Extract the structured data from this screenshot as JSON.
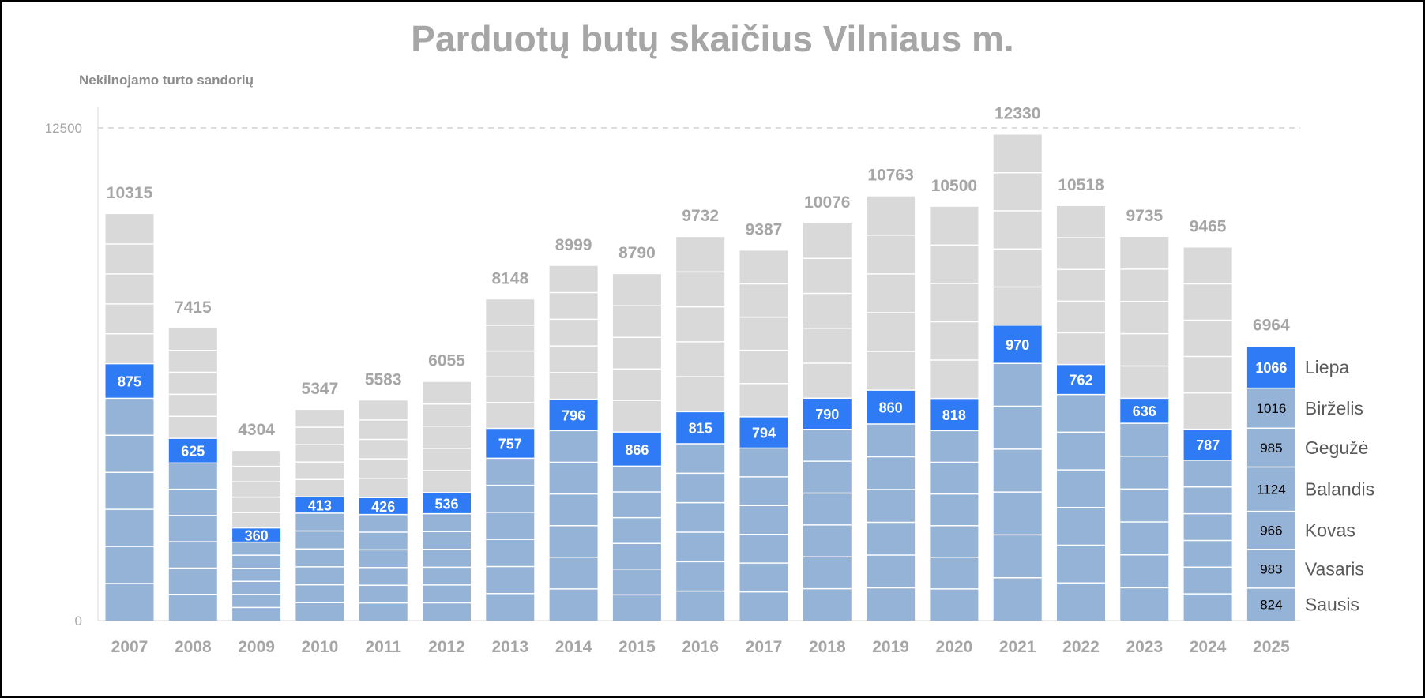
{
  "chart_data": {
    "type": "bar",
    "stacked": true,
    "title": "Parduotų butų skaičius Vilniaus m.",
    "ylabel": "Nekilnojamo turto sandorių",
    "xlabel": "",
    "ylim": [
      0,
      12500
    ],
    "yticks": [
      "0",
      "12500"
    ],
    "reference_line": 12500,
    "categories": [
      "2007",
      "2008",
      "2009",
      "2010",
      "2011",
      "2012",
      "2013",
      "2014",
      "2015",
      "2016",
      "2017",
      "2018",
      "2019",
      "2020",
      "2021",
      "2022",
      "2023",
      "2024",
      "2025"
    ],
    "totals": [
      10315,
      7415,
      4304,
      5347,
      5583,
      6055,
      8148,
      8999,
      8790,
      9732,
      9387,
      10076,
      10763,
      10500,
      12330,
      10518,
      9735,
      9465,
      6964
    ],
    "july_values": [
      875,
      625,
      360,
      413,
      426,
      536,
      757,
      796,
      866,
      815,
      794,
      790,
      860,
      818,
      970,
      762,
      636,
      787,
      1066
    ],
    "ytd_before_july": [
      5642,
      4000,
      1991,
      2727,
      2693,
      2711,
      4120,
      4820,
      3918,
      4487,
      4378,
      4854,
      4988,
      4819,
      6526,
      5737,
      5006,
      4069,
      5898
    ],
    "months_2025": [
      {
        "name": "Sausis",
        "value": "824"
      },
      {
        "name": "Vasaris",
        "value": "983"
      },
      {
        "name": "Kovas",
        "value": "966"
      },
      {
        "name": "Balandis",
        "value": "1124"
      },
      {
        "name": "Gegužė",
        "value": "985"
      },
      {
        "name": "Birželis",
        "value": "1016"
      },
      {
        "name": "Liepa",
        "value": "1066"
      }
    ],
    "colors": {
      "jan_jun": "#95b3d7",
      "july": "#2f7bf5",
      "aug_dec": "#d9d9d9",
      "label_gray": "#a6a6a6"
    },
    "grid": false
  }
}
